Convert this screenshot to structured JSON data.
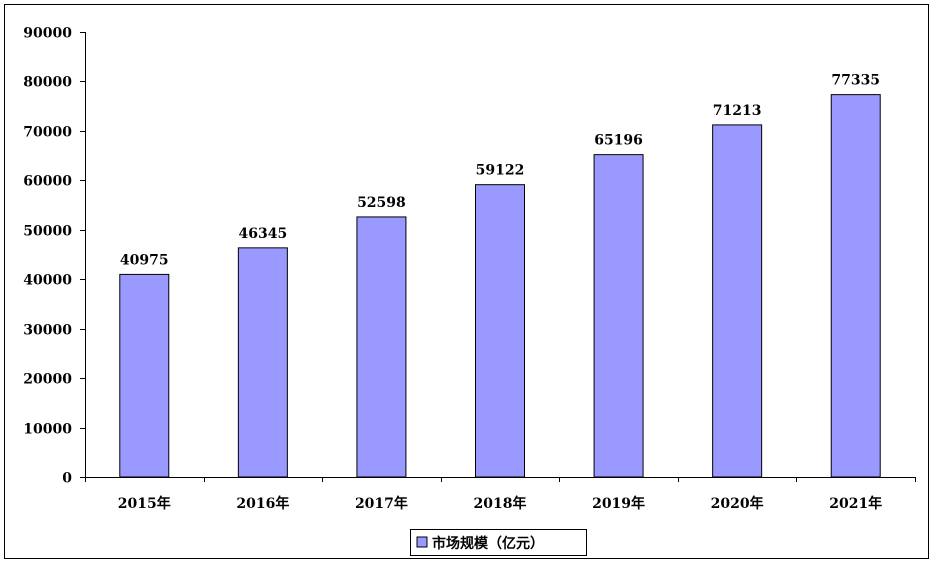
{
  "chart_data": {
    "type": "bar",
    "categories": [
      "2015年",
      "2016年",
      "2017年",
      "2018年",
      "2019年",
      "2020年",
      "2021年"
    ],
    "series": [
      {
        "name": "市场规模（亿元）",
        "values": [
          40975,
          46345,
          52598,
          59122,
          65196,
          71213,
          77335
        ]
      }
    ],
    "ylim": [
      0,
      90000
    ],
    "yticks": [
      0,
      10000,
      20000,
      30000,
      40000,
      50000,
      60000,
      70000,
      80000,
      90000
    ],
    "legend_position": "bottom",
    "grid": false,
    "bar_color": "#9999ff"
  }
}
